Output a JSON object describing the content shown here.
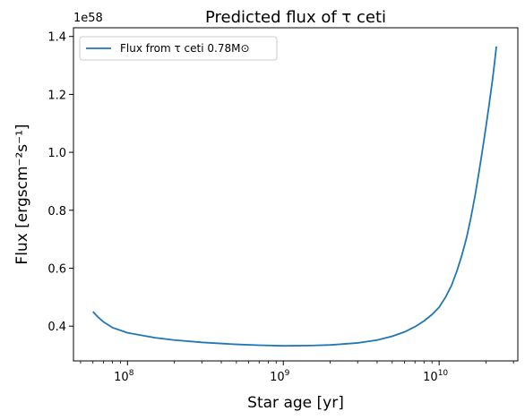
{
  "chart_data": {
    "type": "line",
    "title": "Predicted flux of τ ceti",
    "xlabel": "Star age [yr]",
    "ylabel": "Flux [ergscm⁻²s⁻¹]",
    "y_offset_label": "1e58",
    "xscale": "log",
    "xlim": [
      45000000,
      32000000000
    ],
    "ylim": [
      0.28,
      1.43
    ],
    "grid": false,
    "legend_position": "top-left",
    "x_tick_labels": [
      {
        "value": 100000000,
        "base": "10",
        "exp": "8"
      },
      {
        "value": 1000000000,
        "base": "10",
        "exp": "9"
      },
      {
        "value": 10000000000,
        "base": "10",
        "exp": "10"
      }
    ],
    "y_ticks": [
      0.4,
      0.6,
      0.8,
      1.0,
      1.2,
      1.4
    ],
    "y_tick_labels": [
      "0.4",
      "0.6",
      "0.8",
      "1.0",
      "1.2",
      "1.4"
    ],
    "series": [
      {
        "name": "Flux from τ ceti 0.78M⊙",
        "color": "#1f77b4",
        "x": [
          60000000,
          65000000,
          70000000,
          80000000,
          100000000,
          150000000,
          200000000,
          300000000,
          500000000,
          700000000,
          1000000000,
          1500000000,
          2000000000,
          3000000000,
          4000000000,
          5000000000,
          6000000000,
          7000000000,
          8000000000,
          9000000000,
          10000000000,
          11000000000,
          12000000000,
          13000000000,
          14000000000,
          15000000000,
          16000000000,
          17000000000,
          18000000000,
          19000000000,
          20000000000,
          21000000000,
          22000000000,
          22700000000,
          23300000000
        ],
        "values": [
          0.45,
          0.43,
          0.415,
          0.395,
          0.377,
          0.36,
          0.352,
          0.344,
          0.337,
          0.334,
          0.332,
          0.333,
          0.335,
          0.342,
          0.352,
          0.365,
          0.38,
          0.398,
          0.418,
          0.44,
          0.465,
          0.5,
          0.54,
          0.59,
          0.645,
          0.705,
          0.775,
          0.85,
          0.93,
          1.01,
          1.09,
          1.17,
          1.25,
          1.31,
          1.365
        ]
      }
    ]
  }
}
